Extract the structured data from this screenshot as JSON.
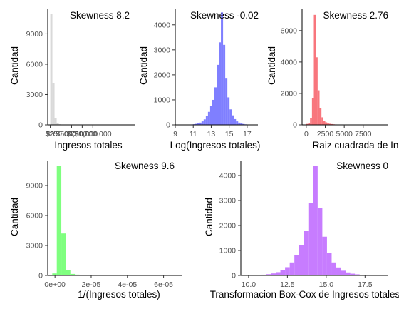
{
  "chart_data": [
    {
      "type": "bar",
      "title": "Skewness 8.2",
      "xlabel": "Ingresos totales",
      "ylabel": "Cantidad",
      "color": "#d9d9d9",
      "xlim": [
        -60000,
        2000000
      ],
      "ylim": [
        0,
        11500
      ],
      "xticks": [
        0,
        250000,
        500000,
        750000,
        1000000
      ],
      "xtick_labels": [
        "$0",
        "$250,000",
        "$500,000",
        "$750,000",
        "$1,000,000"
      ],
      "yticks": [
        0,
        3000,
        6000,
        9000
      ],
      "bin_width": 50000,
      "bins_x": [
        0,
        50000,
        100000,
        150000,
        200000,
        250000,
        300000,
        350000,
        400000,
        450000,
        500000,
        550000,
        600000
      ],
      "counts": [
        11000,
        4100,
        700,
        150,
        60,
        30,
        15,
        10,
        5,
        5,
        5,
        3,
        3
      ]
    },
    {
      "type": "bar",
      "title": "Skewness -0.02",
      "xlabel": "Log(Ingresos totales)",
      "ylabel": "Cantidad",
      "color": "#7f7fff",
      "xlim": [
        9,
        18.2
      ],
      "ylim": [
        0,
        4650
      ],
      "xticks": [
        9,
        11,
        13,
        15,
        17
      ],
      "xtick_labels": [
        "9",
        "11",
        "13",
        "15",
        "17"
      ],
      "yticks": [
        0,
        1000,
        2000,
        3000,
        4000
      ],
      "bin_width": 0.24,
      "bins_x": [
        10.72,
        10.96,
        11.2,
        11.44,
        11.68,
        11.92,
        12.16,
        12.4,
        12.64,
        12.88,
        13.12,
        13.36,
        13.6,
        13.84,
        14.08,
        14.32,
        14.56,
        14.8,
        15.04,
        15.28,
        15.52,
        15.76,
        16.0,
        16.24,
        16.48,
        16.72,
        16.96,
        17.2
      ],
      "counts": [
        15,
        25,
        40,
        60,
        90,
        140,
        220,
        350,
        520,
        750,
        1000,
        1500,
        2400,
        3300,
        4500,
        3200,
        1850,
        1100,
        620,
        380,
        230,
        140,
        90,
        55,
        35,
        20,
        10,
        5
      ]
    },
    {
      "type": "bar",
      "title": "Skewness 2.76",
      "xlabel": "Raiz cuadrada de Ingresos totales",
      "ylabel": "Cantidad",
      "color": "#f8767d",
      "xlim": [
        -550,
        10800
      ],
      "ylim": [
        0,
        7400
      ],
      "xticks": [
        0,
        2500,
        5000,
        7500
      ],
      "xtick_labels": [
        "0",
        "2500",
        "5000",
        "7500"
      ],
      "yticks": [
        0,
        2000,
        4000,
        6000
      ],
      "bin_width": 250,
      "bins_x": [
        0,
        250,
        500,
        750,
        1000,
        1250,
        1500,
        1750,
        2000,
        2250,
        2500,
        2750,
        3000,
        3250,
        3500,
        3750,
        4000,
        4500,
        5000,
        6000,
        7000
      ],
      "counts": [
        60,
        90,
        420,
        1700,
        7000,
        4300,
        2200,
        1050,
        480,
        250,
        160,
        110,
        70,
        50,
        35,
        25,
        15,
        10,
        5,
        3,
        2
      ]
    },
    {
      "type": "bar",
      "title": "Skewness 9.6",
      "xlabel": "1/(Ingresos totales)",
      "ylabel": "Cantidad",
      "color": "#7fff7f",
      "xlim": [
        -4e-06,
        7e-05
      ],
      "ylim": [
        0,
        11500
      ],
      "xticks": [
        0,
        2e-05,
        4e-05,
        6e-05
      ],
      "xtick_labels": [
        "0e+00",
        "2e-05",
        "4e-05",
        "6e-05"
      ],
      "yticks": [
        0,
        3000,
        6000,
        9000
      ],
      "bin_width": 2.5e-06,
      "bins_x": [
        -1.5e-06,
        1e-06,
        3.5e-06,
        6e-06,
        8.5e-06,
        1.1e-05,
        1.35e-05,
        1.6e-05,
        1.85e-05,
        2.1e-05
      ],
      "counts": [
        200,
        11000,
        4200,
        500,
        150,
        80,
        50,
        30,
        20,
        10
      ]
    },
    {
      "type": "bar",
      "title": "Skewness 0",
      "xlabel": "Transformacion Box-Cox de Ingresos totales",
      "ylabel": "Cantidad",
      "color": "#c77cff",
      "xlim": [
        9.5,
        19.0
      ],
      "ylim": [
        0,
        4600
      ],
      "xticks": [
        10.0,
        12.5,
        15.0,
        17.5
      ],
      "xtick_labels": [
        "10.0",
        "12.5",
        "15.0",
        "17.5"
      ],
      "yticks": [
        0,
        1000,
        2000,
        3000,
        4000
      ],
      "bin_width": 0.3,
      "bins_x": [
        10.55,
        10.85,
        11.15,
        11.45,
        11.75,
        12.05,
        12.35,
        12.65,
        12.95,
        13.25,
        13.55,
        13.85,
        14.15,
        14.45,
        14.75,
        15.05,
        15.35,
        15.65,
        15.95,
        16.25,
        16.55,
        16.85,
        17.15,
        17.45,
        17.75
      ],
      "counts": [
        20,
        30,
        50,
        80,
        130,
        200,
        330,
        520,
        800,
        1200,
        1800,
        2900,
        4400,
        2700,
        1550,
        900,
        520,
        320,
        190,
        120,
        70,
        45,
        25,
        15,
        10
      ]
    }
  ]
}
